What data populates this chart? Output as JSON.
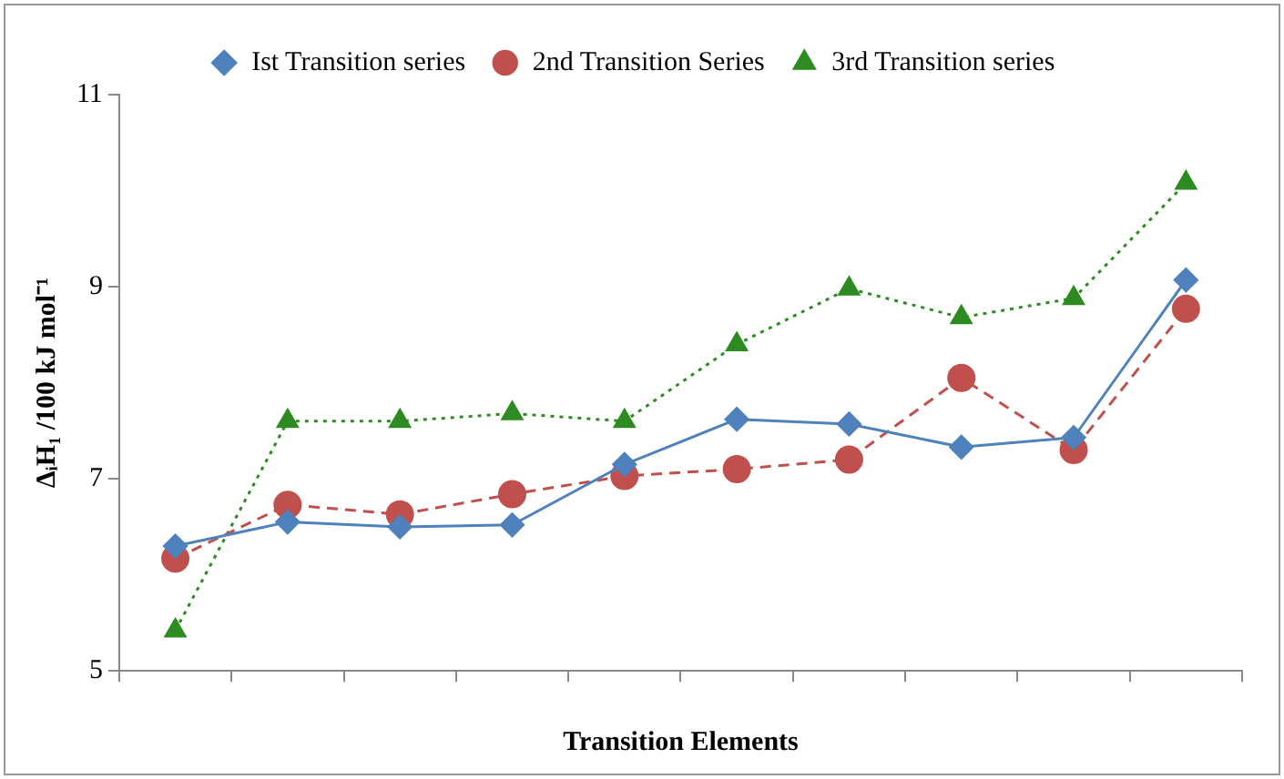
{
  "chart_data": {
    "type": "line",
    "xlabel": "Transition Elements",
    "ylabel": "ΔᵢH₁ /100 kJ mol⁻¹",
    "categories": [
      null,
      null,
      null,
      null,
      null,
      null,
      null,
      null,
      null,
      null
    ],
    "series": [
      {
        "name": "Ist Transition series",
        "color": "#4f81bd",
        "marker": "diamond",
        "line_style": "solid",
        "values": [
          6.3,
          6.55,
          6.5,
          6.52,
          7.15,
          7.62,
          7.57,
          7.33,
          7.43,
          9.07
        ]
      },
      {
        "name": "2nd Transition Series",
        "color": "#c0504d",
        "marker": "circle",
        "line_style": "dashed",
        "values": [
          6.17,
          6.73,
          6.63,
          6.84,
          7.03,
          7.1,
          7.2,
          8.05,
          7.3,
          8.77
        ]
      },
      {
        "name": "3rd Transition series",
        "color": "#2e8b22",
        "marker": "triangle",
        "line_style": "dotted",
        "values": [
          5.42,
          7.6,
          7.6,
          7.68,
          7.6,
          8.4,
          8.98,
          8.68,
          8.88,
          10.08
        ]
      }
    ],
    "ylim": [
      5,
      11
    ],
    "yticks": [
      5,
      7,
      9,
      11
    ],
    "grid": false,
    "legend": "top"
  }
}
